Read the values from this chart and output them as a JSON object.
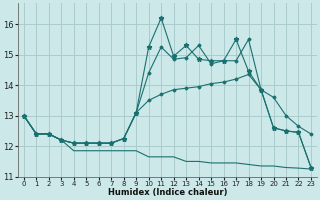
{
  "xlabel": "Humidex (Indice chaleur)",
  "bg_color": "#cce8e8",
  "grid_color": "#aacccc",
  "line_color": "#1a7070",
  "xlim": [
    -0.5,
    23.5
  ],
  "ylim": [
    11.0,
    16.7
  ],
  "yticks": [
    11,
    12,
    13,
    14,
    15,
    16
  ],
  "xticks": [
    0,
    1,
    2,
    3,
    4,
    5,
    6,
    7,
    8,
    9,
    10,
    11,
    12,
    13,
    14,
    15,
    16,
    17,
    18,
    19,
    20,
    21,
    22,
    23
  ],
  "line_min": [
    13.0,
    12.4,
    12.4,
    12.2,
    11.85,
    11.85,
    11.85,
    11.85,
    11.85,
    11.85,
    11.65,
    11.65,
    11.65,
    11.5,
    11.5,
    11.45,
    11.45,
    11.45,
    11.4,
    11.35,
    11.35,
    11.3,
    11.28,
    11.25
  ],
  "line_avg": [
    13.0,
    12.4,
    12.4,
    12.2,
    12.1,
    12.1,
    12.1,
    12.1,
    12.25,
    13.1,
    13.5,
    13.7,
    13.85,
    13.9,
    13.95,
    14.05,
    14.1,
    14.2,
    14.35,
    13.85,
    13.6,
    13.0,
    12.65,
    12.4
  ],
  "line_jagged": [
    13.0,
    12.4,
    12.4,
    12.2,
    12.1,
    12.1,
    12.1,
    12.1,
    12.25,
    13.1,
    14.4,
    15.25,
    14.85,
    14.9,
    15.3,
    14.7,
    14.8,
    14.8,
    15.5,
    13.85,
    12.6,
    12.5,
    12.45,
    11.3
  ],
  "line_top_star": [
    13.0,
    12.4,
    12.4,
    12.2,
    12.1,
    12.1,
    12.1,
    12.1,
    12.25,
    13.1,
    15.25,
    16.2,
    14.95,
    15.3,
    14.85,
    14.8,
    14.8,
    15.5,
    14.45,
    13.85,
    12.6,
    12.5,
    12.45,
    11.3
  ]
}
